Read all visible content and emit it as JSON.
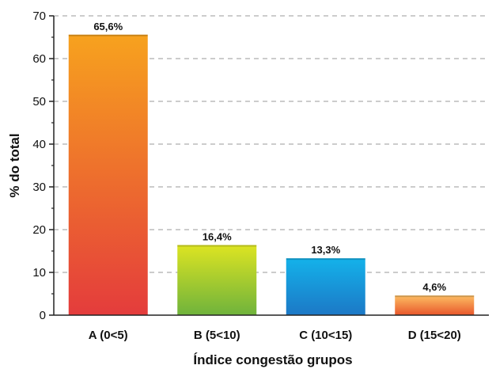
{
  "chart_data": {
    "type": "bar",
    "title": "",
    "xlabel": "Índice congestão grupos",
    "ylabel": "% do total",
    "categories": [
      "A (0<5)",
      "B (5<10)",
      "C (10<15)",
      "D (15<20)"
    ],
    "values": [
      65.6,
      16.4,
      13.3,
      4.6
    ],
    "data_labels": [
      "65,6%",
      "16,4%",
      "13,3%",
      "4,6%"
    ],
    "ylim": [
      0,
      70
    ],
    "yticks": [
      0,
      10,
      20,
      30,
      40,
      50,
      60,
      70
    ],
    "grid": "horizontal dashed",
    "legend": "none",
    "bar_gradients": [
      {
        "top": "#f7a21e",
        "bottom": "#e43c3c"
      },
      {
        "top": "#dde422",
        "bottom": "#6fb33c"
      },
      {
        "top": "#14b2ea",
        "bottom": "#1c78c6"
      },
      {
        "top": "#fdbe63",
        "bottom": "#e8562b"
      }
    ]
  }
}
